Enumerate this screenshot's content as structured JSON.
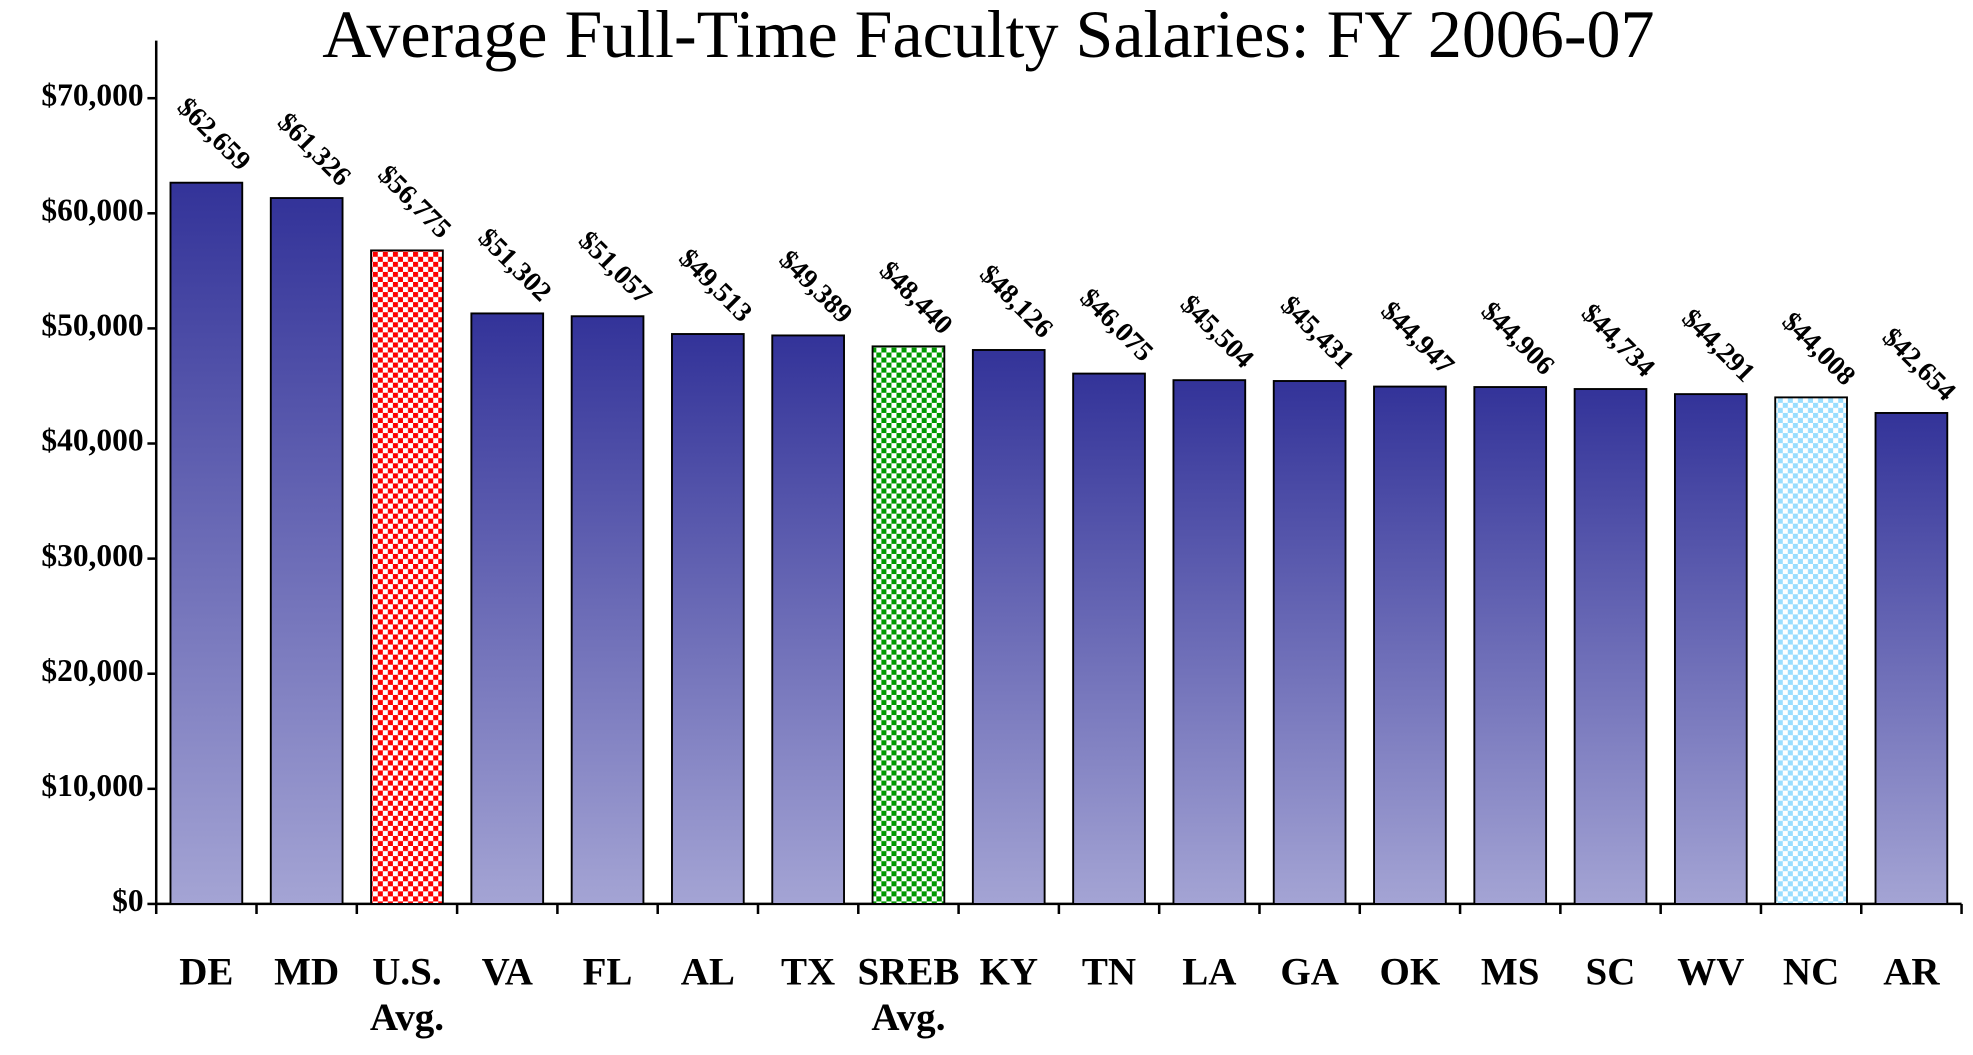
{
  "chart_data": {
    "type": "bar",
    "title": "Average Full-Time Faculty Salaries: FY 2006-07",
    "categories": [
      "DE",
      "MD",
      "U.S. Avg.",
      "VA",
      "FL",
      "AL",
      "TX",
      "SREB Avg.",
      "KY",
      "TN",
      "LA",
      "GA",
      "OK",
      "MS",
      "SC",
      "WV",
      "NC",
      "AR"
    ],
    "values": [
      62659,
      61326,
      56775,
      51302,
      51057,
      49513,
      49389,
      48440,
      48126,
      46075,
      45504,
      45431,
      44947,
      44906,
      44734,
      44291,
      44008,
      42654
    ],
    "value_labels": [
      "$62,659",
      "$61,326",
      "$56,775",
      "$51,302",
      "$51,057",
      "$49,513",
      "$49,389",
      "$48,440",
      "$48,126",
      "$46,075",
      "$45,504",
      "$45,431",
      "$44,947",
      "$44,906",
      "$44,734",
      "$44,291",
      "$44,008",
      "$42,654"
    ],
    "colors": [
      "#333399",
      "#333399",
      "#ff0000",
      "#333399",
      "#333399",
      "#333399",
      "#333399",
      "#009900",
      "#333399",
      "#333399",
      "#333399",
      "#333399",
      "#333399",
      "#333399",
      "#333399",
      "#333399",
      "#99ddff",
      "#333399"
    ],
    "ylim": [
      0,
      75000
    ],
    "yticks": [
      {
        "value": 0,
        "label": "$0"
      },
      {
        "value": 10000,
        "label": "$10,000"
      },
      {
        "value": 20000,
        "label": "$20,000"
      },
      {
        "value": 30000,
        "label": "$30,000"
      },
      {
        "value": 40000,
        "label": "$40,000"
      },
      {
        "value": 50000,
        "label": "$50,000"
      },
      {
        "value": 60000,
        "label": "$60,000"
      },
      {
        "value": 70000,
        "label": "$70,000"
      }
    ]
  }
}
